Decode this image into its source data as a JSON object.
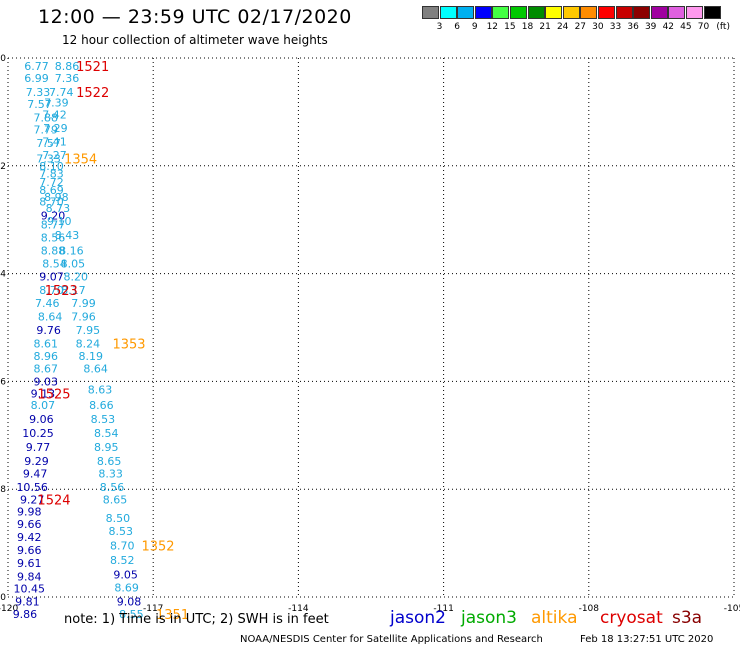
{
  "header": {
    "title": "12:00 — 23:59 UTC 02/17/2020",
    "subtitle": "12 hour collection of altimeter wave heights"
  },
  "legend": {
    "unit": "(ft)",
    "bins": [
      {
        "label": "3",
        "color": "#808080"
      },
      {
        "label": "6",
        "color": "#00ffff"
      },
      {
        "label": "9",
        "color": "#00b0f0"
      },
      {
        "label": "12",
        "color": "#0000ff"
      },
      {
        "label": "15",
        "color": "#44ff44"
      },
      {
        "label": "18",
        "color": "#00c800"
      },
      {
        "label": "21",
        "color": "#008c00"
      },
      {
        "label": "24",
        "color": "#ffff00"
      },
      {
        "label": "27",
        "color": "#ffc800"
      },
      {
        "label": "30",
        "color": "#ff8c00"
      },
      {
        "label": "33",
        "color": "#ff0000"
      },
      {
        "label": "36",
        "color": "#c80000"
      },
      {
        "label": "39",
        "color": "#8c0000"
      },
      {
        "label": "42",
        "color": "#a000a0"
      },
      {
        "label": "45",
        "color": "#e060e0"
      },
      {
        "label": "70",
        "color": "#ff99ee"
      },
      {
        "label": "",
        "color": "#000000"
      }
    ]
  },
  "footer": {
    "note": "note:  1) Time is in UTC;  2) SWH is in feet",
    "satellites": [
      {
        "name": "jason2",
        "color": "#0000cc"
      },
      {
        "name": "jason3",
        "color": "#00aa00"
      },
      {
        "name": "altika",
        "color": "#ff9900"
      },
      {
        "name": "cryosat",
        "color": "#dd0000"
      },
      {
        "name": "s3a",
        "color": "#880000"
      }
    ],
    "credit": "NOAA/NESDIS Center for Satellite Applications and Research",
    "timestamp": "Feb 18 13:27:51 UTC 2020"
  },
  "chart_data": {
    "type": "scatter",
    "xlim": [
      -120,
      -105
    ],
    "ylim": [
      -10,
      0
    ],
    "xticks": [
      "-120",
      "-117",
      "-114",
      "-111",
      "-108",
      "-105"
    ],
    "yticks": [
      "0",
      "-2",
      "-4",
      "-6",
      "-8",
      "-10"
    ],
    "colors": {
      "cyan": "#22aadd",
      "blue": "#0000aa",
      "red": "#dd0000",
      "orange": "#ff9900"
    },
    "points": [
      {
        "x": -119.41,
        "y": -0.15,
        "t": "6.77",
        "c": "cyan"
      },
      {
        "x": -118.78,
        "y": -0.15,
        "t": "8.86",
        "c": "cyan"
      },
      {
        "x": -119.41,
        "y": -0.37,
        "t": "6.99",
        "c": "cyan"
      },
      {
        "x": -118.78,
        "y": -0.37,
        "t": "7.36",
        "c": "cyan"
      },
      {
        "x": -119.38,
        "y": -0.63,
        "t": "7.33",
        "c": "cyan"
      },
      {
        "x": -118.9,
        "y": -0.63,
        "t": "7.74",
        "c": "cyan"
      },
      {
        "x": -119.35,
        "y": -0.85,
        "t": "7.57",
        "c": "cyan"
      },
      {
        "x": -119.0,
        "y": -0.83,
        "t": "7.39",
        "c": "cyan"
      },
      {
        "x": -119.22,
        "y": -1.1,
        "t": "7.88",
        "c": "cyan"
      },
      {
        "x": -119.04,
        "y": -1.05,
        "t": "7.42",
        "c": "cyan"
      },
      {
        "x": -119.22,
        "y": -1.33,
        "t": "7.79",
        "c": "cyan"
      },
      {
        "x": -119.02,
        "y": -1.3,
        "t": "7.29",
        "c": "cyan"
      },
      {
        "x": -119.16,
        "y": -1.58,
        "t": "7.57",
        "c": "cyan"
      },
      {
        "x": -119.04,
        "y": -1.55,
        "t": "7.41",
        "c": "cyan"
      },
      {
        "x": -119.04,
        "y": -1.8,
        "t": "7.27",
        "c": "cyan"
      },
      {
        "x": -119.16,
        "y": -1.86,
        "t": "7.33",
        "c": "cyan"
      },
      {
        "x": -119.1,
        "y": -2.0,
        "t": "8.10",
        "c": "cyan"
      },
      {
        "x": -119.1,
        "y": -2.14,
        "t": "7.83",
        "c": "cyan"
      },
      {
        "x": -119.1,
        "y": -2.3,
        "t": "7.72",
        "c": "cyan"
      },
      {
        "x": -119.1,
        "y": -2.45,
        "t": "8.69",
        "c": "cyan"
      },
      {
        "x": -119.0,
        "y": -2.58,
        "t": "8.98",
        "c": "cyan"
      },
      {
        "x": -119.1,
        "y": -2.66,
        "t": "8.70",
        "c": "cyan"
      },
      {
        "x": -118.97,
        "y": -2.78,
        "t": "8.73",
        "c": "cyan"
      },
      {
        "x": -119.07,
        "y": -2.92,
        "t": "9.20",
        "c": "blue"
      },
      {
        "x": -118.94,
        "y": -3.02,
        "t": "9.10",
        "c": "cyan"
      },
      {
        "x": -119.07,
        "y": -3.09,
        "t": "8.77",
        "c": "cyan"
      },
      {
        "x": -118.78,
        "y": -3.28,
        "t": "8.43",
        "c": "cyan"
      },
      {
        "x": -119.07,
        "y": -3.33,
        "t": "8.56",
        "c": "cyan"
      },
      {
        "x": -119.07,
        "y": -3.57,
        "t": "8.88",
        "c": "cyan"
      },
      {
        "x": -118.69,
        "y": -3.57,
        "t": "8.16",
        "c": "cyan"
      },
      {
        "x": -119.04,
        "y": -3.81,
        "t": "8.54",
        "c": "cyan"
      },
      {
        "x": -118.66,
        "y": -3.81,
        "t": "8.05",
        "c": "cyan"
      },
      {
        "x": -119.1,
        "y": -4.05,
        "t": "9.07",
        "c": "blue"
      },
      {
        "x": -118.6,
        "y": -4.05,
        "t": "8.20",
        "c": "cyan"
      },
      {
        "x": -119.1,
        "y": -4.3,
        "t": "8.70",
        "c": "cyan"
      },
      {
        "x": -118.65,
        "y": -4.3,
        "t": "8.17",
        "c": "cyan"
      },
      {
        "x": -119.19,
        "y": -4.55,
        "t": "7.46",
        "c": "cyan"
      },
      {
        "x": -118.44,
        "y": -4.55,
        "t": "7.99",
        "c": "cyan"
      },
      {
        "x": -119.13,
        "y": -4.8,
        "t": "8.64",
        "c": "cyan"
      },
      {
        "x": -118.44,
        "y": -4.8,
        "t": "7.96",
        "c": "cyan"
      },
      {
        "x": -119.16,
        "y": -5.05,
        "t": "9.76",
        "c": "blue"
      },
      {
        "x": -118.35,
        "y": -5.05,
        "t": "7.95",
        "c": "cyan"
      },
      {
        "x": -119.22,
        "y": -5.3,
        "t": "8.61",
        "c": "cyan"
      },
      {
        "x": -118.35,
        "y": -5.3,
        "t": "8.24",
        "c": "cyan"
      },
      {
        "x": -119.22,
        "y": -5.53,
        "t": "8.96",
        "c": "cyan"
      },
      {
        "x": -118.29,
        "y": -5.53,
        "t": "8.19",
        "c": "cyan"
      },
      {
        "x": -119.22,
        "y": -5.76,
        "t": "8.67",
        "c": "cyan"
      },
      {
        "x": -118.19,
        "y": -5.76,
        "t": "8.64",
        "c": "cyan"
      },
      {
        "x": -119.22,
        "y": -6.0,
        "t": "9.03",
        "c": "blue"
      },
      {
        "x": -118.1,
        "y": -6.15,
        "t": "8.63",
        "c": "cyan"
      },
      {
        "x": -119.28,
        "y": -6.22,
        "t": "9.13",
        "c": "blue"
      },
      {
        "x": -119.28,
        "y": -6.44,
        "t": "8.07",
        "c": "cyan"
      },
      {
        "x": -118.07,
        "y": -6.44,
        "t": "8.66",
        "c": "cyan"
      },
      {
        "x": -119.31,
        "y": -6.7,
        "t": "9.06",
        "c": "blue"
      },
      {
        "x": -118.04,
        "y": -6.7,
        "t": "8.53",
        "c": "cyan"
      },
      {
        "x": -119.38,
        "y": -6.96,
        "t": "10.25",
        "c": "blue"
      },
      {
        "x": -117.97,
        "y": -6.96,
        "t": "8.54",
        "c": "cyan"
      },
      {
        "x": -119.38,
        "y": -7.22,
        "t": "9.77",
        "c": "blue"
      },
      {
        "x": -117.97,
        "y": -7.22,
        "t": "8.95",
        "c": "cyan"
      },
      {
        "x": -119.41,
        "y": -7.48,
        "t": "9.29",
        "c": "blue"
      },
      {
        "x": -117.91,
        "y": -7.48,
        "t": "8.65",
        "c": "cyan"
      },
      {
        "x": -119.44,
        "y": -7.71,
        "t": "9.47",
        "c": "blue"
      },
      {
        "x": -117.88,
        "y": -7.71,
        "t": "8.33",
        "c": "cyan"
      },
      {
        "x": -119.5,
        "y": -7.96,
        "t": "10.56",
        "c": "blue"
      },
      {
        "x": -117.85,
        "y": -7.96,
        "t": "8.56",
        "c": "cyan"
      },
      {
        "x": -119.5,
        "y": -8.19,
        "t": "9.27",
        "c": "blue"
      },
      {
        "x": -117.79,
        "y": -8.19,
        "t": "8.65",
        "c": "cyan"
      },
      {
        "x": -119.56,
        "y": -8.41,
        "t": "9.98",
        "c": "blue"
      },
      {
        "x": -117.73,
        "y": -8.53,
        "t": "8.50",
        "c": "cyan"
      },
      {
        "x": -119.56,
        "y": -8.65,
        "t": "9.66",
        "c": "blue"
      },
      {
        "x": -117.67,
        "y": -8.78,
        "t": "8.53",
        "c": "cyan"
      },
      {
        "x": -119.56,
        "y": -8.89,
        "t": "9.42",
        "c": "blue"
      },
      {
        "x": -119.56,
        "y": -9.13,
        "t": "9.66",
        "c": "blue"
      },
      {
        "x": -117.64,
        "y": -9.04,
        "t": "8.70",
        "c": "cyan"
      },
      {
        "x": -119.56,
        "y": -9.37,
        "t": "9.61",
        "c": "blue"
      },
      {
        "x": -117.64,
        "y": -9.31,
        "t": "8.52",
        "c": "cyan"
      },
      {
        "x": -119.56,
        "y": -9.62,
        "t": "9.84",
        "c": "blue"
      },
      {
        "x": -117.57,
        "y": -9.58,
        "t": "9.05",
        "c": "blue"
      },
      {
        "x": -119.56,
        "y": -9.84,
        "t": "10.45",
        "c": "blue"
      },
      {
        "x": -117.55,
        "y": -9.82,
        "t": "8.69",
        "c": "cyan"
      },
      {
        "x": -119.6,
        "y": -10.08,
        "t": "9.81",
        "c": "blue"
      },
      {
        "x": -117.5,
        "y": -10.08,
        "t": "9.08",
        "c": "blue"
      },
      {
        "x": -119.65,
        "y": -10.32,
        "t": "9.86",
        "c": "blue"
      },
      {
        "x": -117.45,
        "y": -10.32,
        "t": "8.55",
        "c": "cyan"
      }
    ],
    "track_labels": [
      {
        "x": -118.25,
        "y": -0.15,
        "t": "1521",
        "c": "red"
      },
      {
        "x": -118.25,
        "y": -0.63,
        "t": "1522",
        "c": "red"
      },
      {
        "x": -118.5,
        "y": -1.86,
        "t": "1354",
        "c": "orange"
      },
      {
        "x": -118.9,
        "y": -4.3,
        "t": "1523",
        "c": "red"
      },
      {
        "x": -117.5,
        "y": -5.3,
        "t": "1353",
        "c": "orange"
      },
      {
        "x": -119.05,
        "y": -6.22,
        "t": "1525",
        "c": "red"
      },
      {
        "x": -119.05,
        "y": -8.19,
        "t": "1524",
        "c": "red"
      },
      {
        "x": -116.9,
        "y": -9.04,
        "t": "1352",
        "c": "orange"
      },
      {
        "x": -116.6,
        "y": -10.32,
        "t": "1351",
        "c": "orange"
      }
    ]
  }
}
